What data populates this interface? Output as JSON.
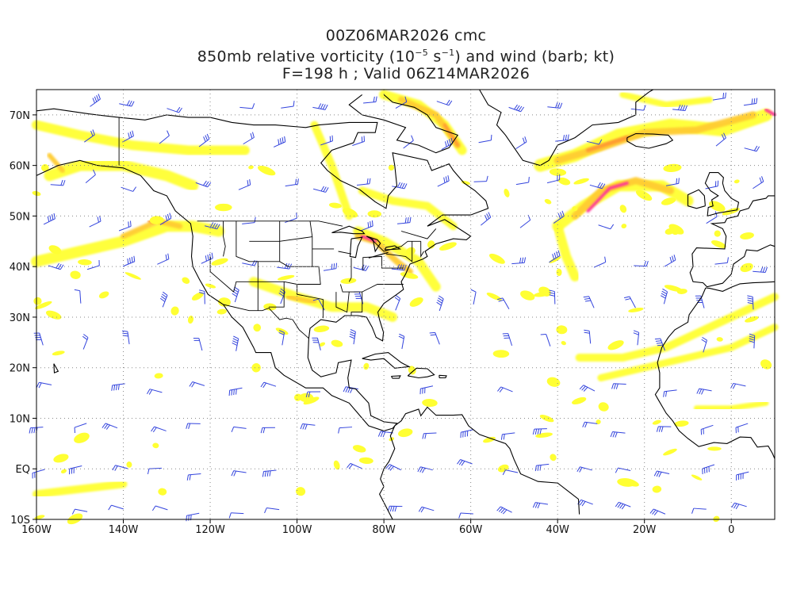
{
  "title": {
    "line1": "00Z06MAR2026 cmc",
    "line2_pre": "850mb relative vorticity (10",
    "line2_exp1": "−5",
    "line2_mid": " s",
    "line2_exp2": "−1",
    "line2_post": ") and wind (barb; kt)",
    "line3": "F=198 h ; Valid 06Z14MAR2026"
  },
  "map": {
    "projection": "cylindrical equidistant",
    "lon_range": [
      -160,
      10
    ],
    "lat_range": [
      -10,
      75
    ],
    "gridlines": "dotted",
    "lon_ticks": [
      {
        "lon": -160,
        "label": "160W"
      },
      {
        "lon": -140,
        "label": "140W"
      },
      {
        "lon": -120,
        "label": "120W"
      },
      {
        "lon": -100,
        "label": "100W"
      },
      {
        "lon": -80,
        "label": "80W"
      },
      {
        "lon": -60,
        "label": "60W"
      },
      {
        "lon": -40,
        "label": "40W"
      },
      {
        "lon": -20,
        "label": "20W"
      },
      {
        "lon": 0,
        "label": "0"
      }
    ],
    "lat_ticks": [
      {
        "lat": 70,
        "label": "70N"
      },
      {
        "lat": 60,
        "label": "60N"
      },
      {
        "lat": 50,
        "label": "50N"
      },
      {
        "lat": 40,
        "label": "40N"
      },
      {
        "lat": 30,
        "label": "30N"
      },
      {
        "lat": 20,
        "label": "20N"
      },
      {
        "lat": 10,
        "label": "10N"
      },
      {
        "lat": 0,
        "label": "EQ"
      },
      {
        "lat": -10,
        "label": "10S"
      }
    ],
    "colors": {
      "vort_low": "#ffff33",
      "vort_mid": "#ffcc33",
      "vort_high": "#ff9933",
      "vort_max": "#ff3399",
      "coast": "#000000",
      "barb": "#3344dd"
    }
  }
}
